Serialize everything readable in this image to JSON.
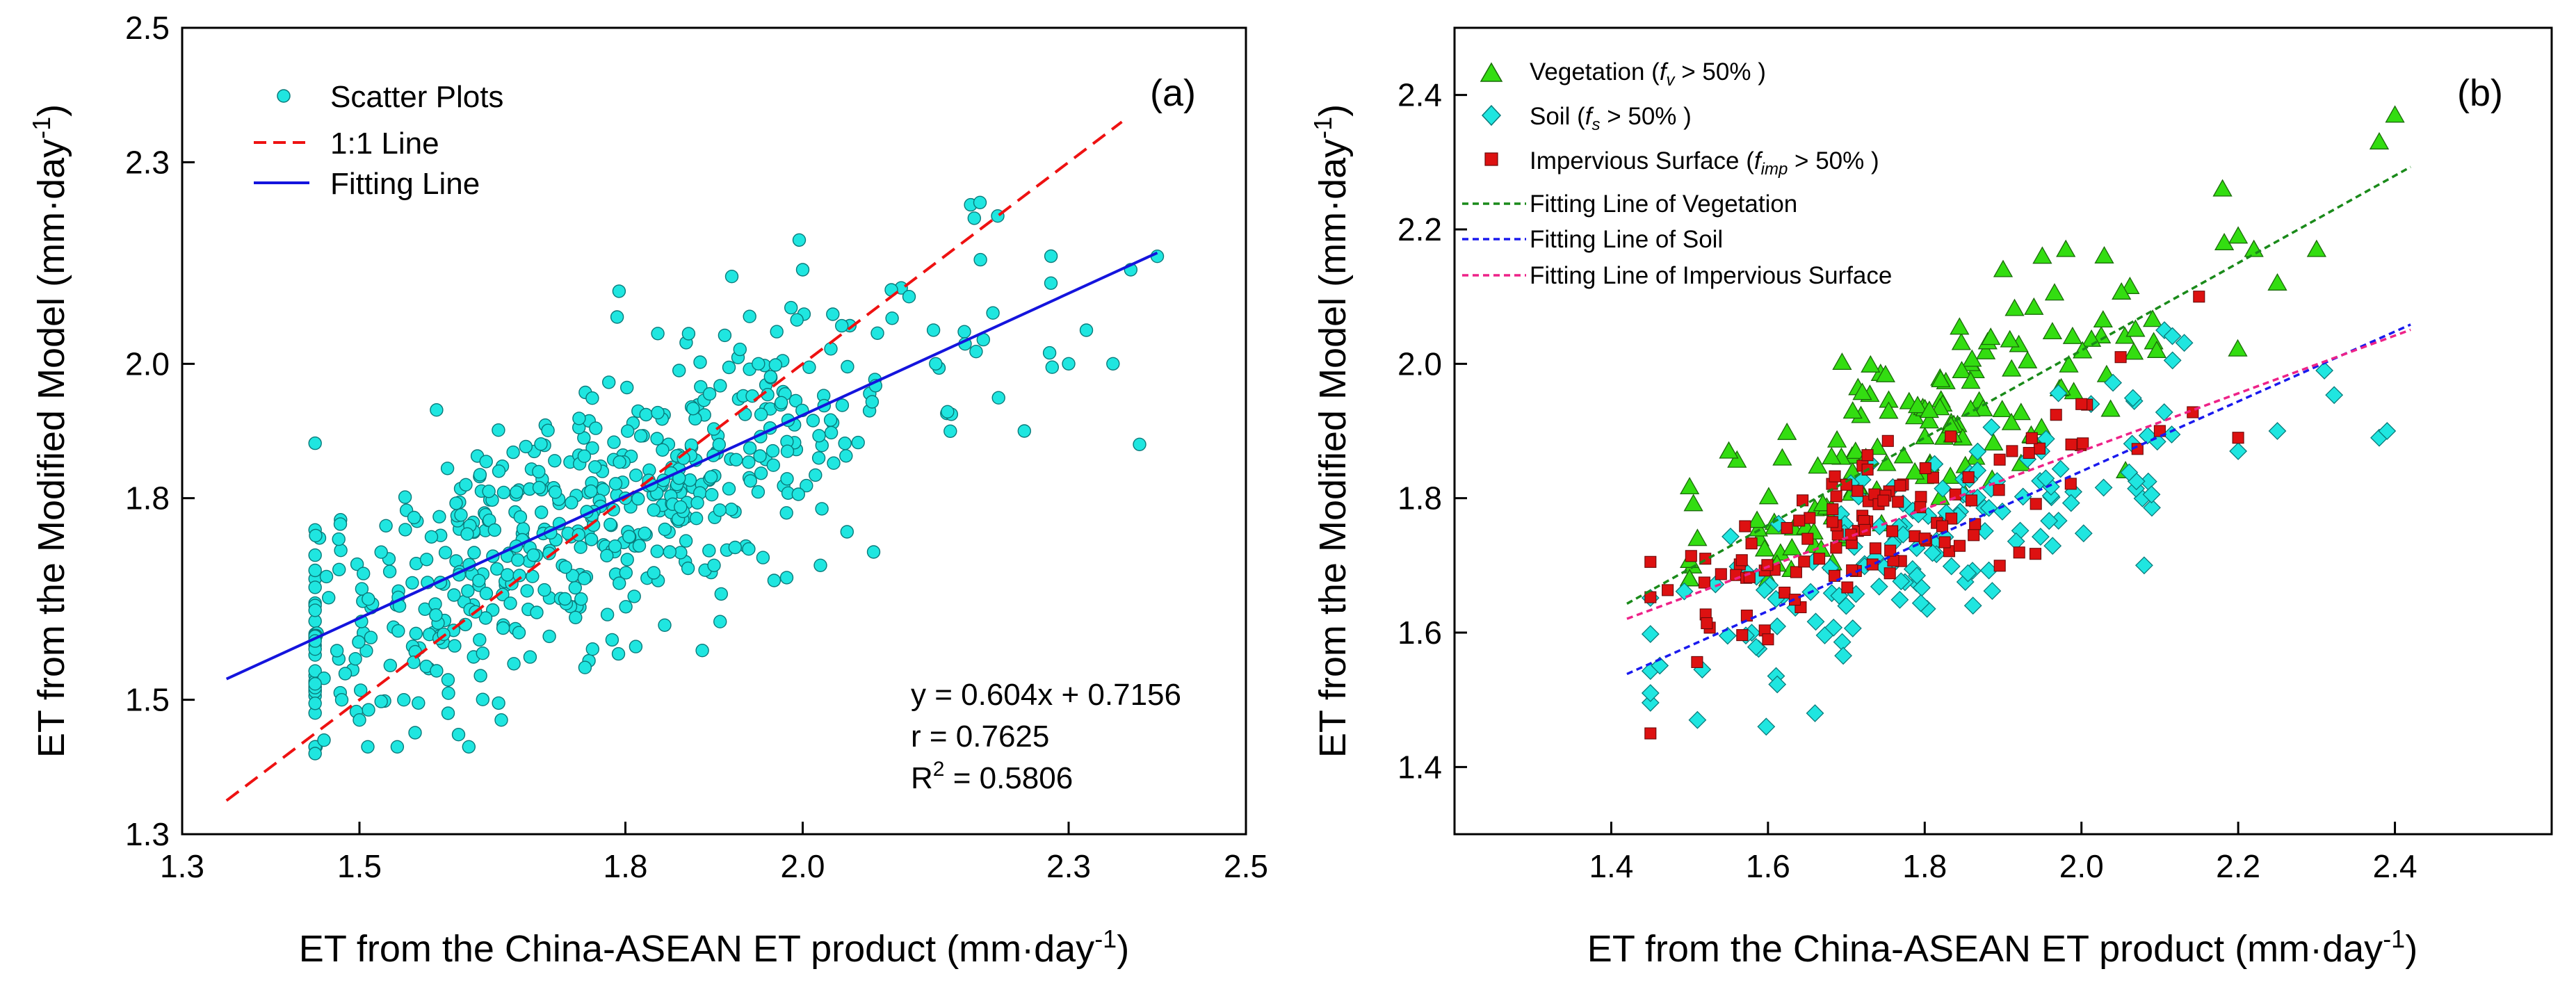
{
  "chart_data": [
    {
      "type": "scatter",
      "panel_label": "(a)",
      "xlabel": {
        "main": "ET from the China-ASEAN ET product (mm·day",
        "sup": "-1",
        "end": ")"
      },
      "ylabel": {
        "main": "ET from the Modified Model (mm·day",
        "sup": "-1",
        "end": ")"
      },
      "xlim": [
        1.3,
        2.5
      ],
      "ylim": [
        1.3,
        2.5
      ],
      "xticks": [
        1.3,
        1.5,
        1.8,
        2.0,
        2.3,
        2.5
      ],
      "xtick_labels": [
        "1.3",
        "1.5",
        "1.8",
        "2.0",
        "2.3",
        "2.5"
      ],
      "yticks": [
        1.3,
        1.5,
        1.8,
        2.0,
        2.3,
        2.5
      ],
      "ytick_labels": [
        "1.3",
        "1.5",
        "1.8",
        "2.0",
        "2.3",
        "2.5"
      ],
      "legend": {
        "scatter": "Scatter Plots",
        "one_to_one": "1:1 Line",
        "fit": "Fitting Line",
        "placement": "top-left"
      },
      "stats": {
        "equation": "y = 0.604x + 0.7156",
        "r": "r = 0.7625",
        "r2_prefix": "R",
        "r2_sup": "2",
        "r2_value": " = 0.5806"
      },
      "fit_line": {
        "slope": 0.604,
        "intercept": 0.7156,
        "x_range": [
          1.35,
          2.4
        ]
      },
      "one_to_one_line": {
        "x_range": [
          1.35,
          2.36
        ]
      },
      "series": [
        {
          "name": "Scatter Plots",
          "color": "#1fe6e0",
          "cluster": {
            "count": 560,
            "x_mean": 1.75,
            "x_sd": 0.19,
            "x_min": 1.45,
            "x_max": 2.4,
            "slope": 0.604,
            "intercept": 0.7156,
            "resid_sd": 0.1,
            "y_min": 1.43,
            "y_max": 2.27,
            "seed": 11
          },
          "x": [
            1.45,
            1.46,
            1.48,
            1.5,
            1.51,
            1.55,
            1.6,
            1.62,
            1.66,
            1.68,
            1.7,
            1.75,
            1.8,
            1.85,
            1.9,
            1.92,
            1.95,
            2.0,
            2.02,
            2.05,
            2.08,
            2.1,
            2.12,
            2.15,
            2.2,
            2.22,
            2.25,
            2.28,
            2.3,
            2.32,
            2.35,
            2.37,
            2.38,
            2.4
          ],
          "y": [
            1.42,
            1.44,
            1.5,
            1.47,
            1.65,
            1.5,
            1.48,
            1.82,
            1.47,
            1.6,
            1.63,
            1.65,
            1.8,
            1.72,
            1.7,
            2.13,
            2.0,
            2.14,
            1.7,
            1.75,
            1.72,
            2.11,
            2.1,
            2.0,
            2.24,
            2.22,
            1.9,
            2.12,
            2.0,
            2.05,
            2.0,
            2.14,
            1.88,
            2.16
          ]
        }
      ]
    },
    {
      "type": "scatter",
      "panel_label": "(b)",
      "xlabel": {
        "main": "ET from the China-ASEAN ET product (mm·day",
        "sup": "-1",
        "end": ")"
      },
      "ylabel": {
        "main": "ET from the Modified Model (mm·day",
        "sup": "-1",
        "end": ")"
      },
      "xlim": [
        1.2,
        2.6
      ],
      "ylim": [
        1.3,
        2.5
      ],
      "xticks": [
        1.4,
        1.6,
        1.8,
        2.0,
        2.2,
        2.4
      ],
      "xtick_labels": [
        "1.4",
        "1.6",
        "1.8",
        "2.0",
        "2.2",
        "2.4"
      ],
      "yticks": [
        1.4,
        1.6,
        1.8,
        2.0,
        2.2,
        2.4
      ],
      "ytick_labels": [
        "1.4",
        "1.6",
        "1.8",
        "2.0",
        "2.2",
        "2.4"
      ],
      "legend_placement": "top-left",
      "series": [
        {
          "name": "Vegetation",
          "legend": {
            "label": "Vegetation (",
            "sym": "f",
            "sub": "v",
            "rest": " > 50% )"
          },
          "marker": "triangle",
          "color": "#33dd11",
          "cluster": {
            "count": 150,
            "x_mean": 1.8,
            "x_sd": 0.18,
            "x_min": 1.5,
            "x_max": 2.4,
            "slope": 0.65,
            "intercept": 0.72,
            "resid_sd": 0.07,
            "y_min": 1.68,
            "y_max": 2.37,
            "seed": 21
          },
          "x": [
            1.51,
            1.55,
            1.6,
            1.9,
            1.95,
            1.98,
            2.18,
            2.2,
            2.22,
            2.25,
            2.3,
            2.38,
            2.4
          ],
          "y": [
            1.74,
            1.87,
            1.68,
            2.14,
            2.16,
            2.17,
            2.26,
            2.19,
            2.17,
            2.12,
            2.17,
            2.33,
            2.37
          ]
        },
        {
          "name": "Soil",
          "legend": {
            "label": "Soil (",
            "sym": "f",
            "sub": "s",
            "rest": " > 50% )"
          },
          "marker": "diamond",
          "color": "#1fe6e0",
          "cluster": {
            "count": 150,
            "x_mean": 1.8,
            "x_sd": 0.19,
            "x_min": 1.45,
            "x_max": 2.4,
            "slope": 0.52,
            "intercept": 0.8,
            "resid_sd": 0.07,
            "y_min": 1.46,
            "y_max": 2.05,
            "seed": 31
          },
          "x": [
            1.45,
            1.51,
            1.66,
            2.08,
            2.2,
            2.25,
            2.31,
            2.38,
            2.39
          ],
          "y": [
            1.51,
            1.47,
            1.48,
            1.7,
            1.87,
            1.9,
            1.99,
            1.89,
            1.9
          ]
        },
        {
          "name": "Impervious Surface",
          "legend": {
            "label": "Impervious Surface (",
            "sym": "f",
            "sub": "imp",
            "rest": " > 50% )"
          },
          "marker": "square",
          "color": "#dd1111",
          "cluster": {
            "count": 110,
            "x_mean": 1.75,
            "x_sd": 0.15,
            "x_min": 1.45,
            "x_max": 2.2,
            "slope": 0.43,
            "intercept": 1.01,
            "resid_sd": 0.05,
            "y_min": 1.45,
            "y_max": 2.1,
            "seed": 41
          },
          "x": [
            1.45,
            1.52,
            1.6,
            1.7,
            1.8,
            2.0,
            2.05,
            2.1,
            2.15,
            2.2
          ],
          "y": [
            1.45,
            1.71,
            1.59,
            1.82,
            1.74,
            1.94,
            2.01,
            1.9,
            2.1,
            1.89
          ]
        }
      ],
      "fits": [
        {
          "name": "Fitting Line of Vegetation",
          "color": "#1a8a1a",
          "slope": 0.65,
          "intercept": 0.72,
          "x_range": [
            1.42,
            2.42
          ]
        },
        {
          "name": "Fitting Line of Soil",
          "color": "#1a1aee",
          "slope": 0.52,
          "intercept": 0.8,
          "x_range": [
            1.42,
            2.42
          ]
        },
        {
          "name": "Fitting Line of Impervious Surface",
          "color": "#ee2288",
          "slope": 0.43,
          "intercept": 1.01,
          "x_range": [
            1.42,
            2.42
          ]
        }
      ]
    }
  ]
}
